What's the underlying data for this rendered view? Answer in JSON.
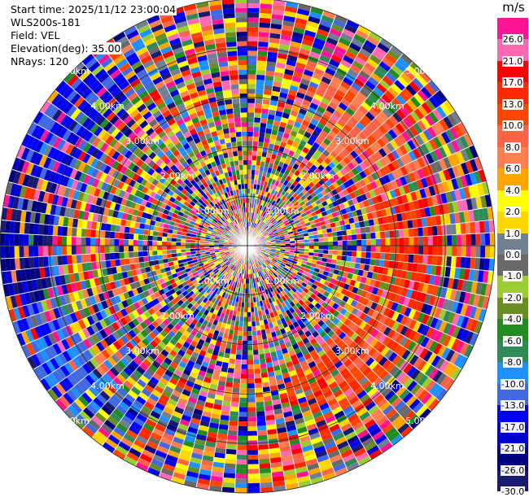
{
  "header": {
    "start_time": "Start time: 2025/11/12 23:00:04",
    "station": "WLS200s-181",
    "field": "Field: VEL",
    "elevation": "Elevation(deg): 35.00",
    "nrays": "NRays: 120"
  },
  "colorbar": {
    "unit": "m/s",
    "segments": [
      {
        "color": "#ff1493",
        "label": "26.0"
      },
      {
        "color": "#ff69b4",
        "label": "21.0"
      },
      {
        "color": "#ff0000",
        "label": "17.0"
      },
      {
        "color": "#ff2a00",
        "label": "13.0"
      },
      {
        "color": "#ff4500",
        "label": "10.0"
      },
      {
        "color": "#ff6347",
        "label": "8.0"
      },
      {
        "color": "#ff7f50",
        "label": "6.0"
      },
      {
        "color": "#ffa500",
        "label": "4.0"
      },
      {
        "color": "#ffff00",
        "label": "2.0"
      },
      {
        "color": "#ffd700",
        "label": "1.0"
      },
      {
        "color": "#708090",
        "label": "0.0"
      },
      {
        "color": "#696969",
        "label": "-1.0"
      },
      {
        "color": "#9acd32",
        "label": "-2.0"
      },
      {
        "color": "#6b8e23",
        "label": "-4.0"
      },
      {
        "color": "#228b22",
        "label": "-6.0"
      },
      {
        "color": "#2e8b57",
        "label": "-8.0"
      },
      {
        "color": "#1e90ff",
        "label": "-10.0"
      },
      {
        "color": "#4169e1",
        "label": "-13.0"
      },
      {
        "color": "#0000ff",
        "label": "-17.0"
      },
      {
        "color": "#0000cd",
        "label": "-21.0"
      },
      {
        "color": "#000080",
        "label": "-26.0"
      },
      {
        "color": "#191970",
        "label": "-30.0"
      }
    ]
  },
  "chart_data": {
    "type": "heatmap",
    "projection": "polar",
    "field": "VEL",
    "units": "m/s",
    "nrays": 120,
    "range_rings_km": [
      1.0,
      2.0,
      3.0,
      4.0,
      5.0
    ],
    "range_ring_labels": [
      "1.00km",
      "2.00km",
      "3.00km",
      "4.00km",
      "5.00km"
    ],
    "max_range_km": 5.0,
    "description_of_pattern": "near-range gates largely noisy; coherent band at ~2.7-3.9 km with positive velocities (orange/red) toward east and negative velocities (blue) toward west",
    "sector_summary": [
      {
        "azimuth_deg": 0,
        "range_km": [
          0.0,
          0.2
        ],
        "value": 1.0
      },
      {
        "azimuth_deg": 90,
        "range_km": [
          2.7,
          3.9
        ],
        "value": 13.0
      },
      {
        "azimuth_deg": 45,
        "range_km": [
          2.5,
          3.8
        ],
        "value": 8.0
      },
      {
        "azimuth_deg": 135,
        "range_km": [
          2.5,
          3.8
        ],
        "value": 10.0
      },
      {
        "azimuth_deg": 270,
        "range_km": [
          4.0,
          5.0
        ],
        "value": -26.0
      },
      {
        "azimuth_deg": 300,
        "range_km": [
          3.8,
          5.0
        ],
        "value": -17.0
      },
      {
        "azimuth_deg": 240,
        "range_km": [
          3.8,
          5.0
        ],
        "value": -13.0
      }
    ]
  }
}
